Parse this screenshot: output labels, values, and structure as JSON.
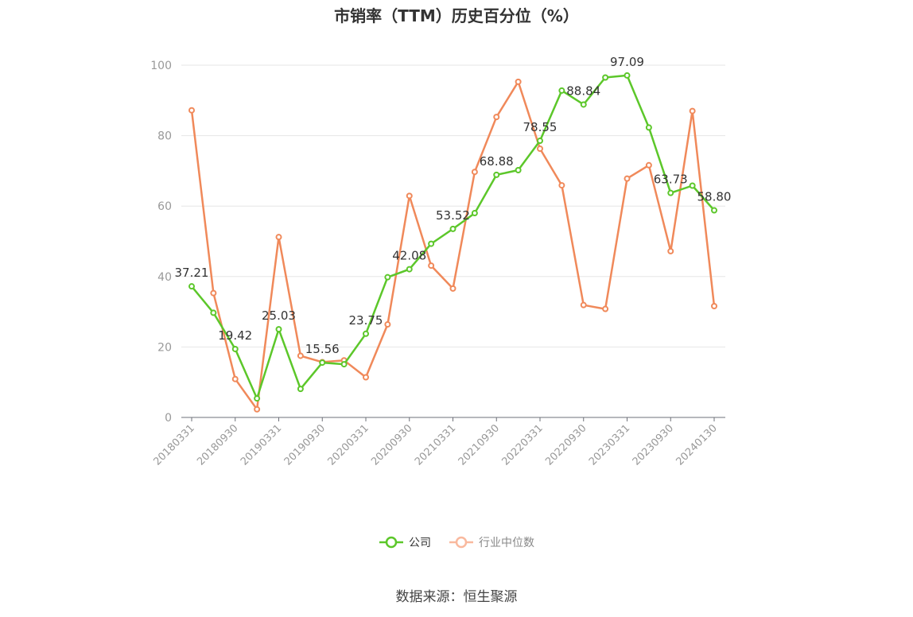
{
  "chart_data": {
    "type": "line",
    "title": "市销率（TTM）历史百分位（%）",
    "source": "数据来源：恒生聚源",
    "ylim": [
      0,
      100
    ],
    "yticks": [
      0,
      20,
      40,
      60,
      80,
      100
    ],
    "grid": true,
    "legend_position": "bottom",
    "x_tick_labels": [
      "20180331",
      "20180930",
      "20190331",
      "20190930",
      "20200331",
      "20200930",
      "20210331",
      "20210930",
      "20220331",
      "20220930",
      "20230331",
      "20230930",
      "20240130"
    ],
    "x": [
      "20180331",
      "20180630",
      "20180930",
      "20181231",
      "20190331",
      "20190630",
      "20190930",
      "20191231",
      "20200331",
      "20200630",
      "20200930",
      "20201231",
      "20210331",
      "20210630",
      "20210930",
      "20211231",
      "20220331",
      "20220630",
      "20220930",
      "20221231",
      "20230331",
      "20230630",
      "20230930",
      "20231231",
      "20240130"
    ],
    "series": [
      {
        "name": "公司",
        "color": "#5cc72a",
        "values": [
          37.21,
          29.7,
          19.42,
          5.4,
          25.03,
          8.1,
          15.56,
          15.1,
          23.75,
          39.8,
          42.08,
          49.3,
          53.52,
          58.0,
          68.88,
          70.2,
          78.55,
          92.8,
          88.84,
          96.5,
          97.09,
          82.3,
          63.73,
          65.8,
          58.8
        ],
        "labels": {
          "0": "37.21",
          "2": "19.42",
          "4": "25.03",
          "6": "15.56",
          "8": "23.75",
          "10": "42.08",
          "12": "53.52",
          "14": "68.88",
          "16": "78.55",
          "18": "88.84",
          "20": "97.09",
          "22": "63.73",
          "24": "58.80"
        }
      },
      {
        "name": "行业中位数",
        "color": "#f0895a",
        "values": [
          87.2,
          35.3,
          10.9,
          2.3,
          51.2,
          17.5,
          15.7,
          16.2,
          11.4,
          26.4,
          62.9,
          43.1,
          36.6,
          69.7,
          85.3,
          95.3,
          76.3,
          65.9,
          31.9,
          30.8,
          67.8,
          71.6,
          47.2,
          87.0,
          31.6
        ]
      }
    ]
  }
}
